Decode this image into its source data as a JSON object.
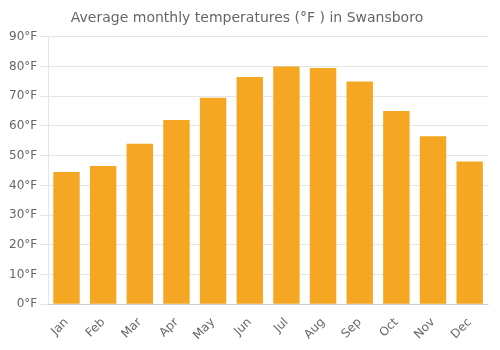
{
  "chart_data": {
    "type": "bar",
    "title": "Average monthly temperatures (°F ) in Swansboro",
    "categories": [
      "Jan",
      "Feb",
      "Mar",
      "Apr",
      "May",
      "Jun",
      "Jul",
      "Aug",
      "Sep",
      "Oct",
      "Nov",
      "Dec"
    ],
    "values": [
      44.5,
      46.5,
      54,
      62,
      69.5,
      76.5,
      80,
      79.5,
      75,
      65,
      56.5,
      48
    ],
    "color": "#F5A623",
    "ylim": [
      0,
      90
    ],
    "yticks": [
      {
        "value": 0,
        "label": "0°F"
      },
      {
        "value": 10,
        "label": "10°F"
      },
      {
        "value": 20,
        "label": "20°F"
      },
      {
        "value": 30,
        "label": "30°F"
      },
      {
        "value": 40,
        "label": "40°F"
      },
      {
        "value": 50,
        "label": "50°F"
      },
      {
        "value": 60,
        "label": "60°F"
      },
      {
        "value": 70,
        "label": "70°F"
      },
      {
        "value": 80,
        "label": "80°F"
      },
      {
        "value": 90,
        "label": "90°F"
      }
    ],
    "grid": true
  }
}
